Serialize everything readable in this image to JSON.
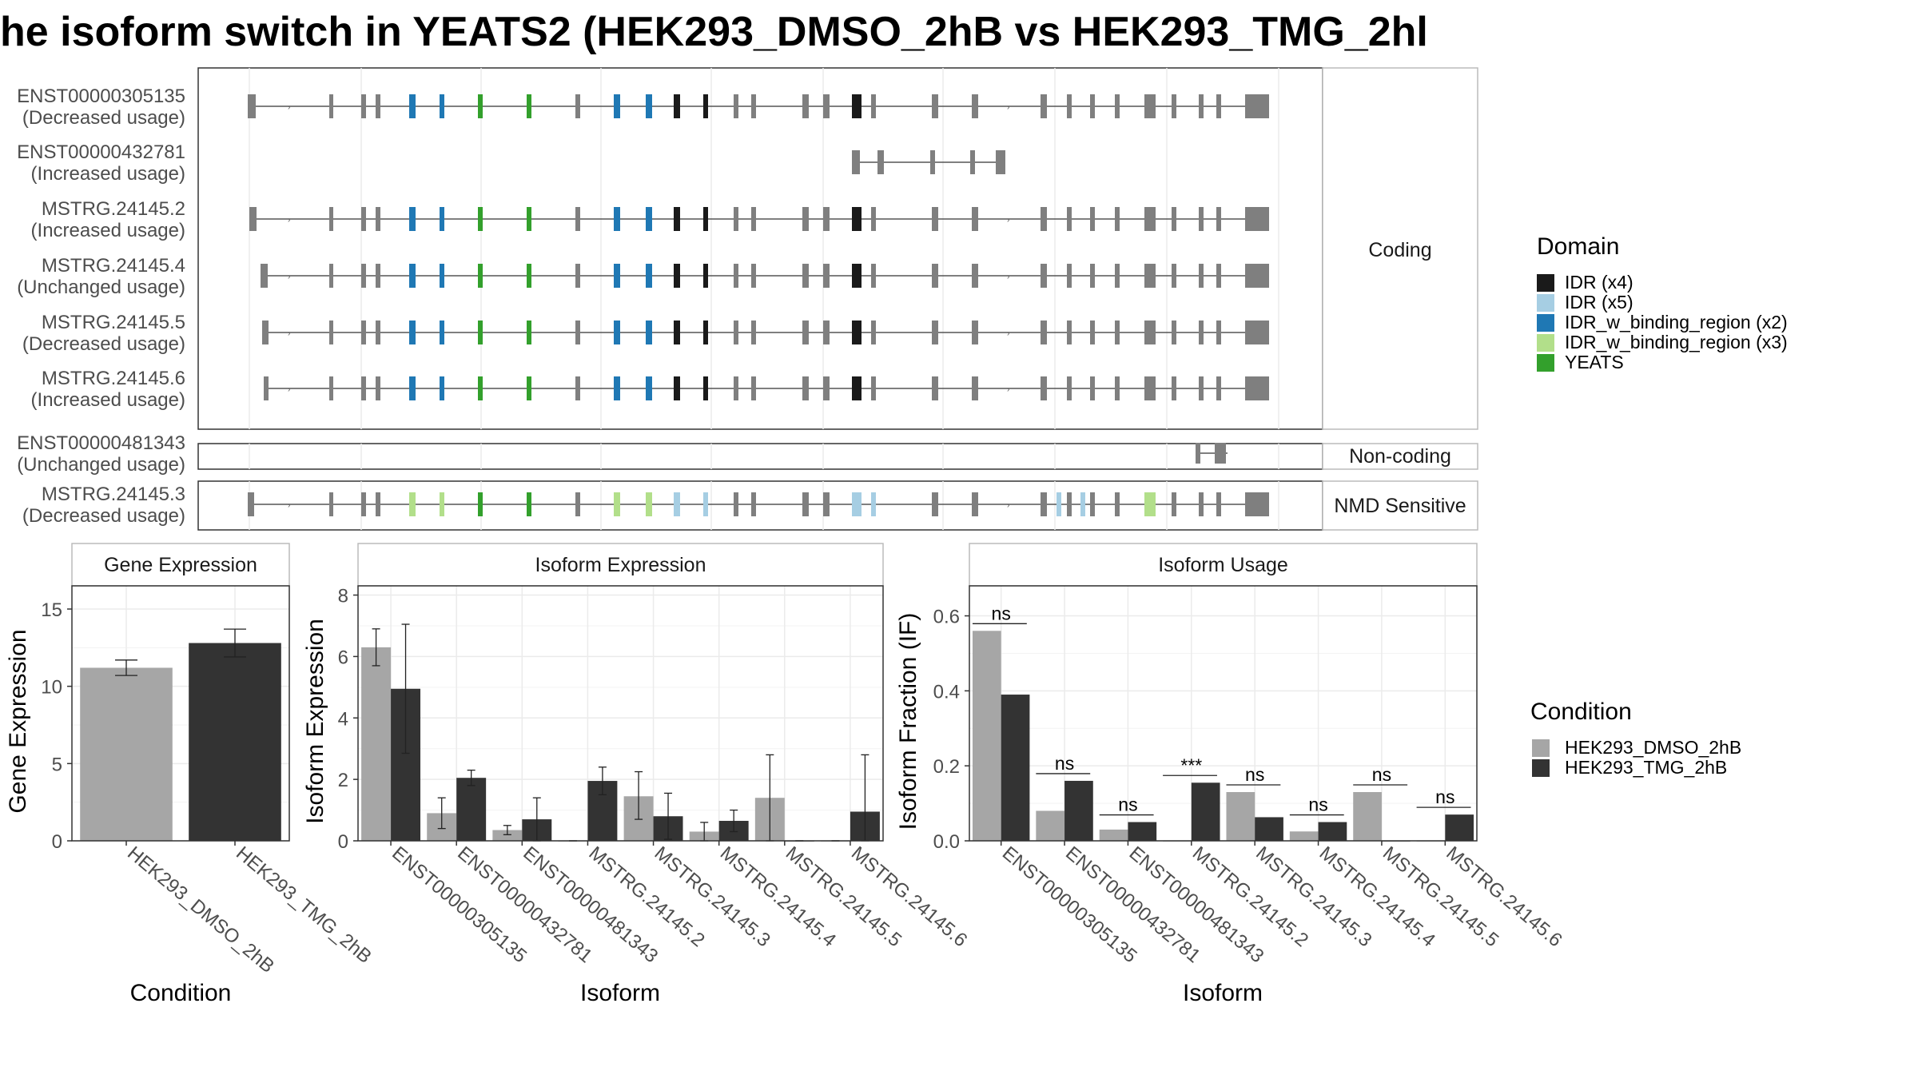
{
  "title": "he isoform switch in YEATS2 (HEK293_DMSO_2hB vs HEK293_TMG_2hl",
  "colors": {
    "exon": "#7f7f7f",
    "IDR": "#1a1a1a",
    "IDR_light": "#a6cee3",
    "IDR_w_binding": "#1f78b4",
    "IDR_w_binding_light": "#b2df8a",
    "YEATS": "#33a02c",
    "cond1": "#a6a6a6",
    "cond2": "#333333"
  },
  "structure": {
    "strips": [
      "Coding",
      "Non-coding",
      "NMD Sensitive"
    ],
    "transcripts": [
      {
        "id": "ENST00000305135",
        "usage": "(Decreased usage)",
        "group": "Coding"
      },
      {
        "id": "ENST00000432781",
        "usage": "(Increased usage)",
        "group": "Coding"
      },
      {
        "id": "MSTRG.24145.2",
        "usage": "(Increased usage)",
        "group": "Coding"
      },
      {
        "id": "MSTRG.24145.4",
        "usage": "(Unchanged usage)",
        "group": "Coding"
      },
      {
        "id": "MSTRG.24145.5",
        "usage": "(Decreased usage)",
        "group": "Coding"
      },
      {
        "id": "MSTRG.24145.6",
        "usage": "(Increased usage)",
        "group": "Coding"
      },
      {
        "id": "ENST00000481343",
        "usage": "(Unchanged usage)",
        "group": "Non-coding"
      },
      {
        "id": "MSTRG.24145.3",
        "usage": "(Decreased usage)",
        "group": "NMD Sensitive"
      }
    ],
    "domain_legend": {
      "title": "Domain",
      "items": [
        {
          "label": "IDR (x4)",
          "color": "#1a1a1a"
        },
        {
          "label": "IDR (x5)",
          "color": "#a6cee3"
        },
        {
          "label": "IDR_w_binding_region (x2)",
          "color": "#1f78b4"
        },
        {
          "label": "IDR_w_binding_region (x3)",
          "color": "#b2df8a"
        },
        {
          "label": "YEATS",
          "color": "#33a02c"
        }
      ]
    }
  },
  "chart_data": [
    {
      "type": "bar",
      "title": "Gene Expression",
      "xlabel": "Condition",
      "ylabel": "Gene Expression",
      "ylim": [
        0,
        16.5
      ],
      "yticks": [
        0,
        5,
        10,
        15
      ],
      "categories": [
        "HEK293_DMSO_2hB",
        "HEK293_TMG_2hB"
      ],
      "values": [
        11.2,
        12.8
      ],
      "errors": [
        [
          10.7,
          11.7
        ],
        [
          11.9,
          13.7
        ]
      ]
    },
    {
      "type": "bar",
      "title": "Isoform Expression",
      "xlabel": "Isoform",
      "ylabel": "Isoform Expression",
      "ylim": [
        0,
        8.3
      ],
      "yticks": [
        0,
        2,
        4,
        6,
        8
      ],
      "categories": [
        "ENST00000305135",
        "ENST00000432781",
        "ENST00000481343",
        "MSTRG.24145.2",
        "MSTRG.24145.3",
        "MSTRG.24145.4",
        "MSTRG.24145.5",
        "MSTRG.24145.6"
      ],
      "series": [
        {
          "name": "HEK293_DMSO_2hB",
          "values": [
            6.3,
            0.9,
            0.35,
            0,
            1.45,
            0.3,
            1.4,
            0
          ],
          "errors": [
            [
              5.7,
              6.9
            ],
            [
              0.4,
              1.4
            ],
            [
              0.2,
              0.5
            ],
            [
              0,
              0
            ],
            [
              0.7,
              2.25
            ],
            [
              0,
              0.6
            ],
            [
              0,
              2.8
            ],
            [
              0,
              0
            ]
          ]
        },
        {
          "name": "HEK293_TMG_2hB",
          "values": [
            4.95,
            2.05,
            0.7,
            1.95,
            0.8,
            0.65,
            0,
            0.95
          ],
          "errors": [
            [
              2.85,
              7.05
            ],
            [
              1.8,
              2.3
            ],
            [
              0,
              1.4
            ],
            [
              1.5,
              2.4
            ],
            [
              0.05,
              1.55
            ],
            [
              0.3,
              1.0
            ],
            [
              0,
              0
            ],
            [
              0,
              2.8
            ]
          ]
        }
      ]
    },
    {
      "type": "bar",
      "title": "Isoform Usage",
      "xlabel": "Isoform",
      "ylabel": "Isoform Fraction (IF)",
      "ylim": [
        0,
        0.68
      ],
      "yticks": [
        0.0,
        0.2,
        0.4,
        0.6
      ],
      "categories": [
        "ENST00000305135",
        "ENST00000432781",
        "ENST00000481343",
        "MSTRG.24145.2",
        "MSTRG.24145.3",
        "MSTRG.24145.4",
        "MSTRG.24145.5",
        "MSTRG.24145.6"
      ],
      "series": [
        {
          "name": "HEK293_DMSO_2hB",
          "values": [
            0.56,
            0.08,
            0.03,
            0,
            0.13,
            0.025,
            0.13,
            0
          ]
        },
        {
          "name": "HEK293_TMG_2hB",
          "values": [
            0.39,
            0.16,
            0.05,
            0.155,
            0.063,
            0.05,
            0,
            0.07
          ]
        }
      ],
      "significance": [
        "ns",
        "ns",
        "ns",
        "***",
        "ns",
        "ns",
        "ns",
        "ns"
      ]
    }
  ],
  "condition_legend": {
    "title": "Condition",
    "items": [
      {
        "label": "HEK293_DMSO_2hB",
        "color": "#a6a6a6"
      },
      {
        "label": "HEK293_TMG_2hB",
        "color": "#333333"
      }
    ]
  }
}
